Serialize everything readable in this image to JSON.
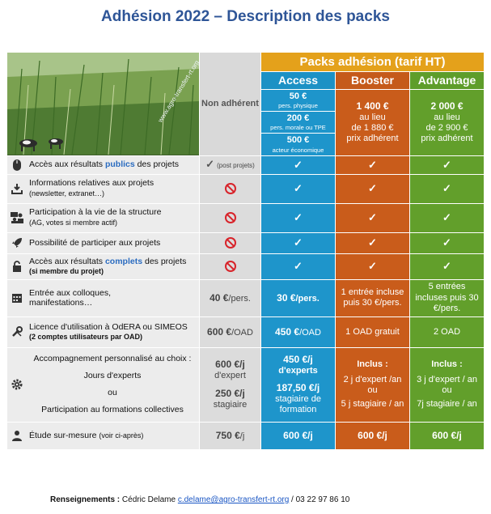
{
  "title": "Adhésion 2022 – Description des packs",
  "header": {
    "photo_url_text": "www.agro-transfert-rt.org",
    "non_adherent": "Non adhérent",
    "packs_title": "Packs adhésion (tarif HT)",
    "packs": [
      "Access",
      "Booster",
      "Advantage"
    ]
  },
  "prices": {
    "access": [
      {
        "amount": "50 €",
        "note": "pers. physique"
      },
      {
        "amount": "200 €",
        "note": "pers. morale ou TPE"
      },
      {
        "amount": "500 €",
        "note": "acteur économique"
      }
    ],
    "booster": {
      "amount": "1 400 €",
      "l1": "au lieu",
      "l2": "de 1 880 €",
      "l3": "prix adhérent"
    },
    "advantage": {
      "amount": "2 000 €",
      "l1": "au lieu",
      "l2": "de 2 900 €",
      "l3": "prix adhérent"
    }
  },
  "rows": [
    {
      "icon": "mouse-icon",
      "pre": "Accès aux résultats ",
      "hl": "publics",
      "post": " des projets",
      "sub": "",
      "non": "✓ (post projets)",
      "access": "✓",
      "booster": "✓",
      "advantage": "✓"
    },
    {
      "icon": "download-icon",
      "pre": "Informations relatives aux projets",
      "hl": "",
      "post": "",
      "sub": "(newsletter, extranet…)",
      "non": "",
      "access": "✓",
      "booster": "✓",
      "advantage": "✓"
    },
    {
      "icon": "community-icon",
      "pre": "Participation à la vie de la structure",
      "hl": "",
      "post": "",
      "sub": "(AG, votes si membre actif)",
      "non": "",
      "access": "✓",
      "booster": "✓",
      "advantage": "✓"
    },
    {
      "icon": "rocket-icon",
      "pre": "Possibilité de participer aux projets",
      "hl": "",
      "post": "",
      "sub": "",
      "non": "",
      "access": "✓",
      "booster": "✓",
      "advantage": "✓"
    },
    {
      "icon": "lock-icon",
      "pre": "Accès aux résultats ",
      "hl": "complets",
      "post": " des projets",
      "sub": "(si membre du projet)",
      "non": "",
      "access": "✓",
      "booster": "✓",
      "advantage": "✓"
    },
    {
      "icon": "calendar-icon",
      "pre": "Entrée aux colloques,",
      "hl": "",
      "post": "",
      "sub2": "manifestations…",
      "non_main": "40 €",
      "non_unit": "/pers.",
      "access_main": "30 €",
      "access_unit": "/pers.",
      "booster": "1 entrée incluse puis 30 €/pers.",
      "advantage": "5 entrées incluses puis 30 €/pers."
    },
    {
      "icon": "tools-icon",
      "pre": "Licence d'utilisation à OdERA ou SIMEOS",
      "hl": "",
      "post": "",
      "sub": "(2 comptes utilisateurs par OAD)",
      "non_main": "600 €",
      "non_unit": "/OAD",
      "access_main": "450 €",
      "access_unit": "/OAD",
      "booster": "1 OAD gratuit",
      "advantage": "2 OAD"
    }
  ],
  "accomp": {
    "icon": "gear-icon",
    "l1": "Accompagnement personnalisé au choix :",
    "l2": "Jours d'experts",
    "l3": "ou",
    "l4": "Participation au formations collectives",
    "non_a": "600 €/j",
    "non_a_sub": "d'expert",
    "non_b": "250 €/j",
    "non_b_sub": "stagiaire",
    "access_a": "450 €/j",
    "access_a_sub": "d'experts",
    "access_b": "187,50 €/j",
    "access_b_sub": "stagiaire de formation",
    "booster_head": "Inclus :",
    "booster_a": "2 j d'expert /an",
    "booster_or": "ou",
    "booster_b": "5 j stagiaire / an",
    "adv_head": "Inclus :",
    "adv_a": "3 j d'expert / an",
    "adv_or": "ou",
    "adv_b": "7j stagiaire / an"
  },
  "etude": {
    "icon": "user-icon",
    "label": "Étude sur-mesure",
    "sub": "(voir ci-après)",
    "non_main": "750 €",
    "non_unit": "/j",
    "access": "600 €/j",
    "booster": "600 €/j",
    "advantage": "600 €/j"
  },
  "footer": {
    "label": "Renseignements :",
    "name": "Cédric Delame",
    "email": "c.delame@agro-transfert-rt.org",
    "phone": "/ 03 22 97 86 10"
  },
  "colors": {
    "title": "#2e5597",
    "access": "#1e95cb",
    "booster": "#c95c1b",
    "advantage": "#629f2b",
    "packs_head": "#e4a11b",
    "highlight": "#2b6cc0",
    "forbidden": "#d8232a"
  }
}
